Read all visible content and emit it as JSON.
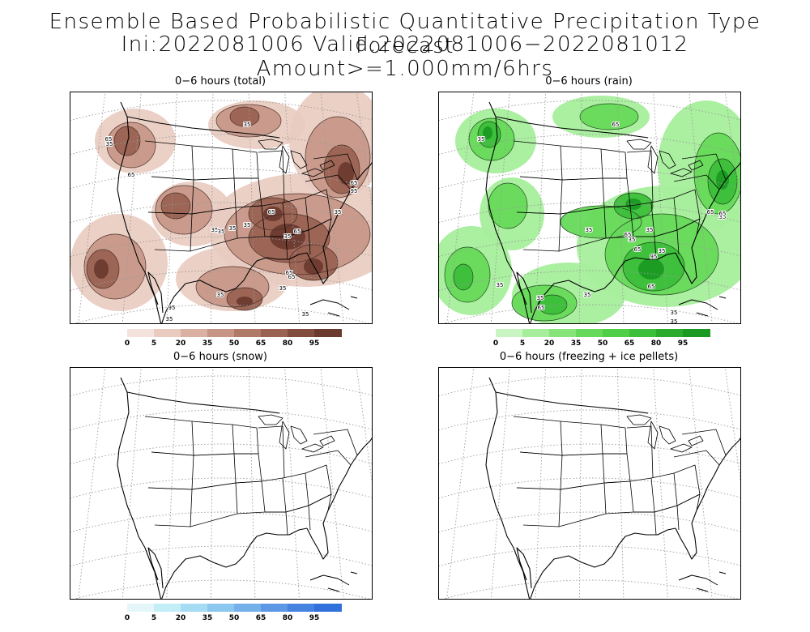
{
  "title": {
    "line1": "Ensemble Based Probabilistic Quantitative Precipitation Type Forecast",
    "line2": "Ini:2022081006 Valid:2022081006−2022081012 Amount>=1.000mm/6hrs"
  },
  "panels": {
    "total": {
      "title": "0−6 hours (total)"
    },
    "rain": {
      "title": "0−6 hours (rain)"
    },
    "snow": {
      "title": "0−6 hours (snow)"
    },
    "freeze": {
      "title": "0−6 hours (freezing + ice pellets)"
    }
  },
  "contour_labels": {
    "total": [
      "35",
      "65",
      "35",
      "65",
      "35",
      "35",
      "35",
      "35",
      "65",
      "35",
      "65",
      "35",
      "65",
      "35",
      "95",
      "65",
      "35",
      "65",
      "95",
      "35",
      "35",
      "35"
    ],
    "rain": [
      "65",
      "35",
      "35",
      "65",
      "35",
      "35",
      "65",
      "35",
      "35",
      "65",
      "35",
      "95",
      "65",
      "35",
      "65",
      "35",
      "35",
      "35",
      "65"
    ]
  },
  "colorbars": {
    "labels": [
      "0",
      "5",
      "20",
      "35",
      "50",
      "65",
      "80",
      "95"
    ],
    "total": [
      "#f3e3dc",
      "#e9cbc0",
      "#dab0a2",
      "#c69585",
      "#af7a68",
      "#996252",
      "#824c3e",
      "#6b3a2f"
    ],
    "rain": [
      "#c9f5c2",
      "#a7ee9c",
      "#86e479",
      "#66d95a",
      "#4fcf47",
      "#3cbf3a",
      "#2aab2c",
      "#1a9a22"
    ],
    "snow": [
      "#e3f7fb",
      "#c3eef7",
      "#a6dcf3",
      "#8cc7ef",
      "#74b0ea",
      "#5c98e5",
      "#4683e0",
      "#3270db"
    ]
  }
}
